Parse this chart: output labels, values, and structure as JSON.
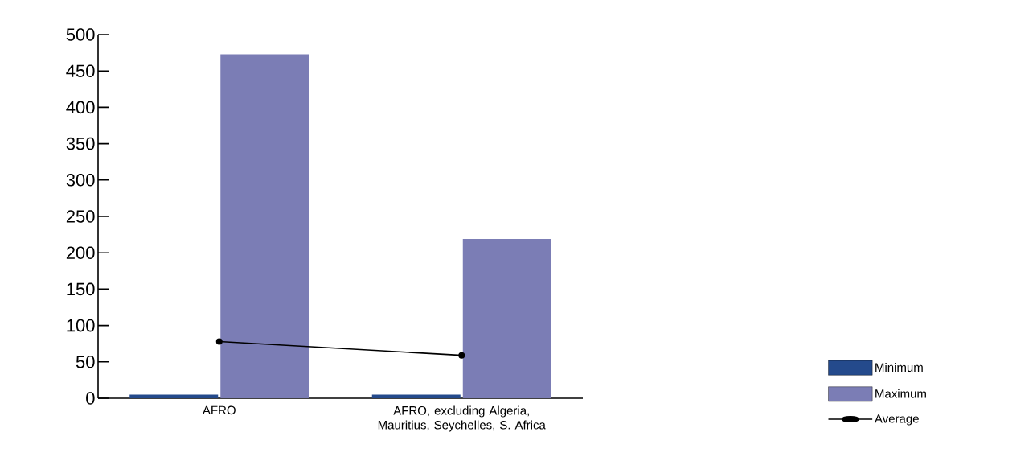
{
  "chart_data": {
    "type": "bar",
    "categories": [
      "AFRO",
      "AFRO, excluding Algeria, Mauritius, Seychelles, S. Africa"
    ],
    "series": [
      {
        "name": "Minimum",
        "color": "#244a8c",
        "values": [
          5,
          5
        ]
      },
      {
        "name": "Maximum",
        "color": "#7b7db5",
        "values": [
          473,
          219
        ]
      },
      {
        "name": "Average",
        "type": "line",
        "color": "#000000",
        "marker": "circle",
        "values": [
          78,
          59
        ]
      }
    ],
    "ylim": [
      0,
      500
    ],
    "yticks": [
      0,
      50,
      100,
      150,
      200,
      250,
      300,
      350,
      400,
      450,
      500
    ],
    "legend": "right",
    "grid": false
  }
}
